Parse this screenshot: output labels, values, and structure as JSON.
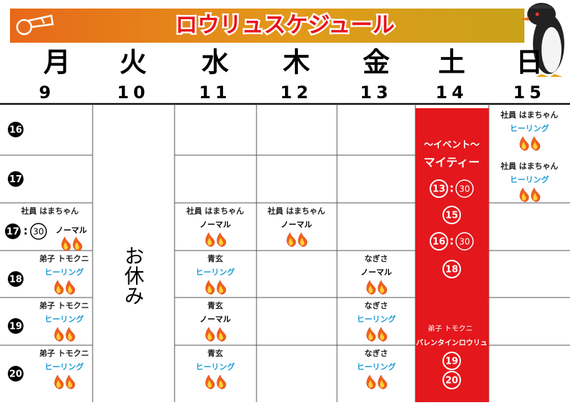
{
  "header": {
    "title": "ロウリュスケジュール"
  },
  "days": [
    {
      "name": "月",
      "date": "9"
    },
    {
      "name": "火",
      "date": "10"
    },
    {
      "name": "水",
      "date": "11"
    },
    {
      "name": "木",
      "date": "12"
    },
    {
      "name": "金",
      "date": "13"
    },
    {
      "name": "土",
      "date": "14"
    },
    {
      "name": "日",
      "date": "15"
    }
  ],
  "closed": {
    "tuesday": "お休み"
  },
  "rows": [
    {
      "time": {
        "hour": "16"
      },
      "sun": {
        "staff": "社員 はまちゃん",
        "type": "ヒーリング",
        "color": "#1e9bd7"
      }
    },
    {
      "time": {
        "hour": "17"
      },
      "sun": {
        "staff": "社員 はまちゃん",
        "type": "ヒーリング",
        "color": "#1e9bd7"
      }
    },
    {
      "time": {
        "hour": "17",
        "sep": ":",
        "minute": "30"
      },
      "mon": {
        "staff": "社員 はまちゃん",
        "type": "ノーマル",
        "color": "#000000"
      },
      "wed": {
        "staff": "社員 はまちゃん",
        "type": "ノーマル",
        "color": "#000000"
      },
      "thu": {
        "staff": "社員 はまちゃん",
        "type": "ノーマル",
        "color": "#000000"
      }
    },
    {
      "time": {
        "hour": "18"
      },
      "mon": {
        "staff": "弟子 トモクニ",
        "type": "ヒーリング",
        "color": "#1e9bd7"
      },
      "wed": {
        "staff": "青玄",
        "type": "ヒーリング",
        "color": "#1e9bd7"
      },
      "fri": {
        "staff": "なぎさ",
        "type": "ノーマル",
        "color": "#000000"
      }
    },
    {
      "time": {
        "hour": "19"
      },
      "mon": {
        "staff": "弟子 トモクニ",
        "type": "ヒーリング",
        "color": "#1e9bd7"
      },
      "wed": {
        "staff": "青玄",
        "type": "ノーマル",
        "color": "#000000"
      },
      "fri": {
        "staff": "なぎさ",
        "type": "ヒーリング",
        "color": "#1e9bd7"
      }
    },
    {
      "time": {
        "hour": "20"
      },
      "mon": {
        "staff": "弟子 トモクニ",
        "type": "ヒーリング",
        "color": "#1e9bd7"
      },
      "wed": {
        "staff": "青玄",
        "type": "ヒーリング",
        "color": "#1e9bd7"
      },
      "fri": {
        "staff": "なぎさ",
        "type": "ヒーリング",
        "color": "#1e9bd7"
      }
    }
  ],
  "event": {
    "label": "～イベント～",
    "name": "マイティー",
    "times": [
      {
        "hour": "13",
        "sep": ":",
        "minute": "30"
      },
      {
        "hour": "15"
      },
      {
        "hour": "16",
        "sep": ":",
        "minute": "30"
      },
      {
        "hour": "18"
      }
    ],
    "second": {
      "staff": "弟子 トモクニ",
      "name": "バレンタインロウリュ",
      "times": [
        {
          "hour": "19"
        },
        {
          "hour": "20"
        }
      ]
    }
  }
}
